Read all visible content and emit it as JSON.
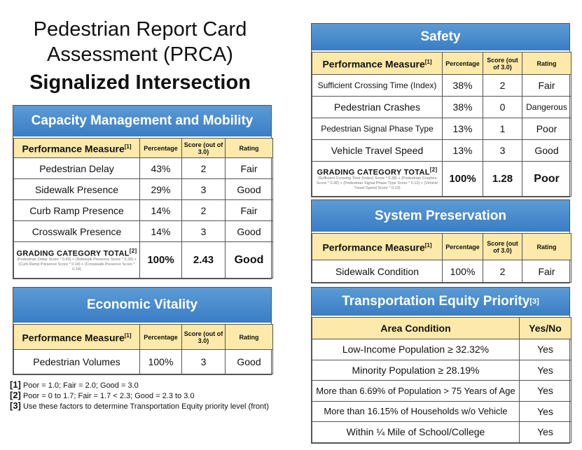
{
  "title": {
    "line1": "Pedestrian Report Card",
    "line2": "Assessment (PRCA)",
    "line3": "Signalized Intersection"
  },
  "columns": {
    "measure": "Performance Measure",
    "measure_note": "[1]",
    "percentage": "Percentage",
    "score": "Score (out of 3.0)",
    "rating": "Rating"
  },
  "capacity": {
    "title": "Capacity Management and Mobility",
    "rows": [
      {
        "measure": "Pedestrian Delay",
        "pct": "43%",
        "score": "2",
        "rating": "Fair"
      },
      {
        "measure": "Sidewalk Presence",
        "pct": "29%",
        "score": "3",
        "rating": "Good"
      },
      {
        "measure": "Curb Ramp Presence",
        "pct": "14%",
        "score": "2",
        "rating": "Fair"
      },
      {
        "measure": "Crosswalk Presence",
        "pct": "14%",
        "score": "3",
        "rating": "Good"
      }
    ],
    "total": {
      "label": "GRADING CATEGORY TOTAL",
      "note": "[2]",
      "formula": "(Pedestrian Delay Score * 0.43) + (Sidewalk Presence Score * 0.29) + (Curb Ramp Presence Score * 0.14) + (Crosswalk Presence Score * 0.14)",
      "pct": "100%",
      "score": "2.43",
      "rating": "Good"
    }
  },
  "economic": {
    "title": "Economic Vitality",
    "rows": [
      {
        "measure": "Pedestrian Volumes",
        "pct": "100%",
        "score": "3",
        "rating": "Good"
      }
    ]
  },
  "safety": {
    "title": "Safety",
    "rows": [
      {
        "measure": "Sufficient Crossing Time (Index)",
        "pct": "38%",
        "score": "2",
        "rating": "Fair"
      },
      {
        "measure": "Pedestrian Crashes",
        "pct": "38%",
        "score": "0",
        "rating": "Dangerous"
      },
      {
        "measure": "Pedestrian Signal Phase Type",
        "pct": "13%",
        "score": "1",
        "rating": "Poor"
      },
      {
        "measure": "Vehicle Travel Speed",
        "pct": "13%",
        "score": "3",
        "rating": "Good"
      }
    ],
    "total": {
      "label": "GRADING CATEGORY TOTAL",
      "note": "[2]",
      "formula": "(Sufficient Crossing Time (Index) Score * 0.38) + (Pedestrian Crashes Score * 0.38) + (Pedestrian Signal Phase Type Score * 0.13) + (Vehicle Travel Speed Score * 0.13)",
      "pct": "100%",
      "score": "1.28",
      "rating": "Poor"
    }
  },
  "preservation": {
    "title": "System Preservation",
    "rows": [
      {
        "measure": "Sidewalk Condition",
        "pct": "100%",
        "score": "2",
        "rating": "Fair"
      }
    ]
  },
  "equity": {
    "title": "Transportation Equity Priority",
    "note": "[3]",
    "col_condition": "Area Condition",
    "col_yesno": "Yes/No",
    "rows": [
      {
        "condition": "Low-Income Population ≥ 32.32%",
        "value": "Yes"
      },
      {
        "condition": "Minority Population ≥ 28.19%",
        "value": "Yes"
      },
      {
        "condition": "More than 6.69% of Population > 75 Years of Age",
        "value": "Yes"
      },
      {
        "condition": "More than 16.15% of Households w/o Vehicle",
        "value": "Yes"
      },
      {
        "condition": "Within ¼ Mile of School/College",
        "value": "Yes"
      }
    ]
  },
  "notes": [
    {
      "num": "[1]",
      "text": "Poor = 1.0; Fair = 2.0; Good = 3.0"
    },
    {
      "num": "[2]",
      "text": "Poor = 0 to 1.7; Fair = 1.7 < 2.3; Good = 2.3 to 3.0"
    },
    {
      "num": "[3]",
      "text": "Use these factors to determine Transportation Equity priority level (front)"
    }
  ]
}
